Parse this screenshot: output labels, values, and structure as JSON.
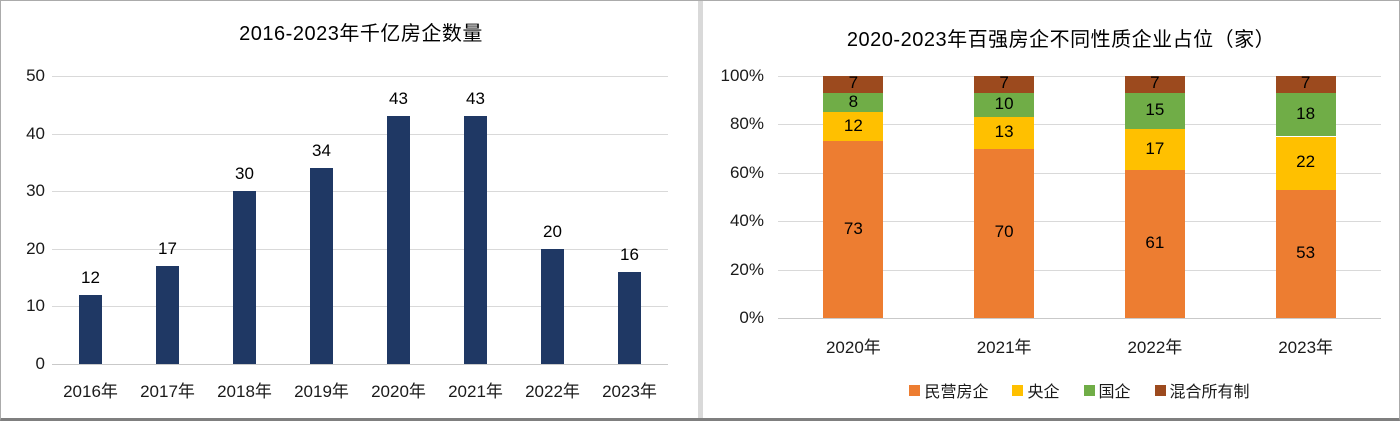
{
  "colors": {
    "navy": "#1F3864",
    "orange": "#ED7D31",
    "gold": "#FFC000",
    "green": "#70AD47",
    "brown": "#9C4A1E",
    "gridline": "#D9D9D9",
    "axis_text": "#1A1A1A"
  },
  "chart_data": [
    {
      "type": "bar",
      "title": "2016-2023年千亿房企数量",
      "categories": [
        "2016年",
        "2017年",
        "2018年",
        "2019年",
        "2020年",
        "2021年",
        "2022年",
        "2023年"
      ],
      "values": [
        12,
        17,
        30,
        34,
        43,
        43,
        20,
        16
      ],
      "xlabel": "",
      "ylabel": "",
      "ylim": [
        0,
        50
      ],
      "yticks": [
        0,
        10,
        20,
        30,
        40,
        50
      ],
      "bar_color": "#1F3864",
      "grid": true,
      "data_labels": true,
      "legend_position": "none"
    },
    {
      "type": "stacked-bar",
      "title": "2020-2023年百强房企不同性质企业占位（家）",
      "categories": [
        "2020年",
        "2021年",
        "2022年",
        "2023年"
      ],
      "series": [
        {
          "name": "民营房企",
          "color": "#ED7D31",
          "values": [
            73,
            70,
            61,
            53
          ]
        },
        {
          "name": "央企",
          "color": "#FFC000",
          "values": [
            12,
            13,
            17,
            22
          ]
        },
        {
          "name": "国企",
          "color": "#70AD47",
          "values": [
            8,
            10,
            15,
            18
          ]
        },
        {
          "name": "混合所有制",
          "color": "#9C4A1E",
          "values": [
            7,
            7,
            7,
            7
          ]
        }
      ],
      "xlabel": "",
      "ylabel": "",
      "ylim": [
        0,
        100
      ],
      "yticks": [
        0,
        20,
        40,
        60,
        80,
        100
      ],
      "ytick_format": "percent",
      "ytick_labels": [
        "0%",
        "20%",
        "40%",
        "60%",
        "80%",
        "100%"
      ],
      "grid": true,
      "data_labels": true,
      "legend_position": "bottom"
    }
  ]
}
